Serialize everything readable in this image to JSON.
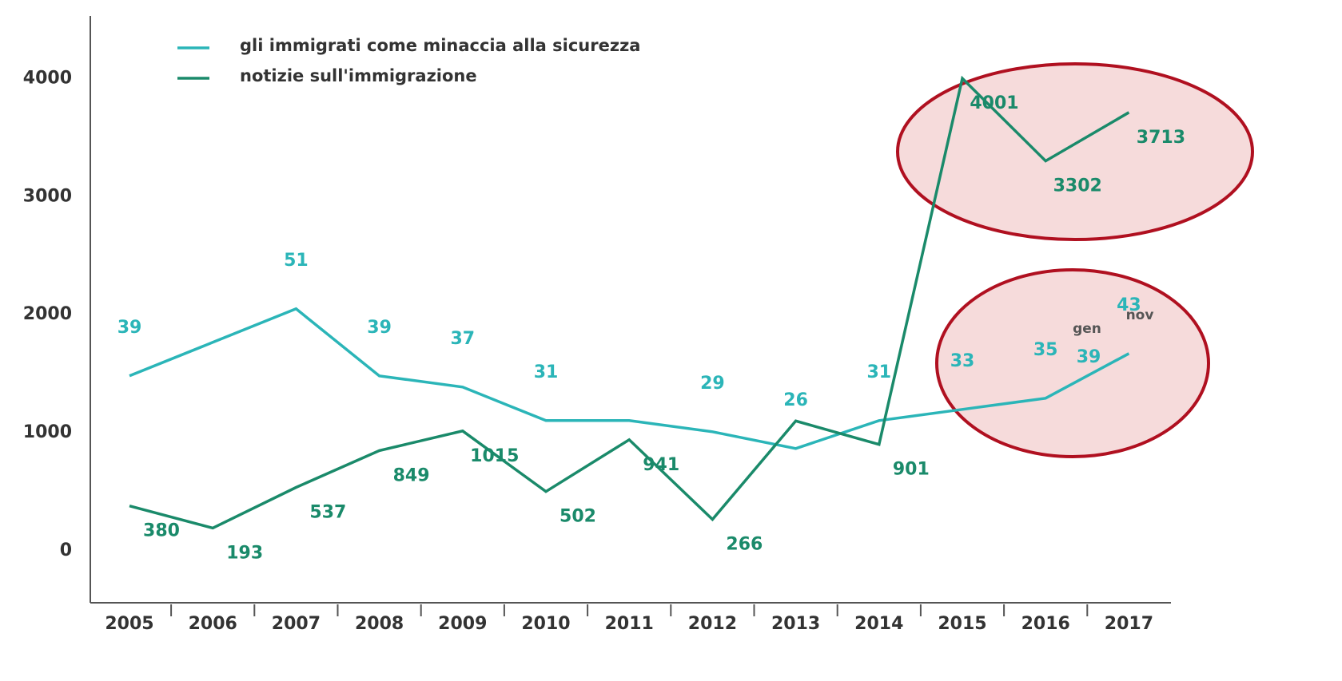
{
  "chart_data": {
    "type": "line",
    "categories": [
      "2005",
      "2006",
      "2007",
      "2008",
      "2009",
      "2010",
      "2011",
      "2012",
      "2013",
      "2014",
      "2015",
      "2016",
      "2017"
    ],
    "series": [
      {
        "name": "gli immigrati come minaccia alla sicurezza",
        "color": "#2bb5b8",
        "axis": "y2",
        "values": [
          39,
          45,
          51,
          39,
          37,
          31,
          31,
          29,
          26,
          31,
          33,
          35,
          43
        ],
        "value_labels": [
          "39",
          null,
          "51",
          "39",
          "37",
          "31",
          null,
          "29",
          "26",
          "31",
          "33",
          "35",
          "43"
        ]
      },
      {
        "name": "notizie sull'immigrazione",
        "color": "#1a8a6a",
        "values": [
          380,
          193,
          537,
          849,
          1015,
          502,
          941,
          266,
          1100,
          901,
          4001,
          3302,
          3713
        ],
        "value_labels": [
          "380",
          "193",
          "537",
          "849",
          "1015",
          "502",
          "941",
          "266",
          null,
          "901",
          "4001",
          "3302",
          "3713"
        ]
      }
    ],
    "annotations": [
      "gen",
      "39",
      "nov"
    ],
    "ylim": [
      -440,
      4530
    ],
    "yticks": [
      0,
      1000,
      2000,
      3000,
      4000
    ],
    "y2lim": [
      -1.6,
      103.4
    ],
    "legend": "upper left"
  }
}
